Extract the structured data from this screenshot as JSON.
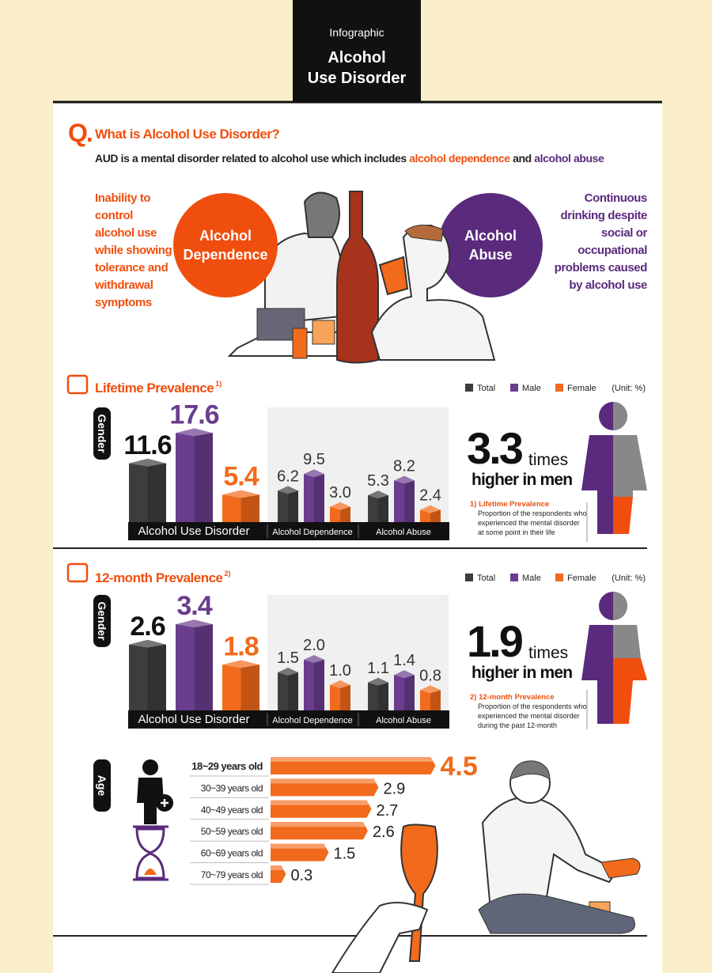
{
  "header": {
    "kicker": "Infographic",
    "title_lines": [
      "Alcohol",
      "Use Disorder"
    ]
  },
  "intro": {
    "q": "Q.",
    "question": "What is Alcohol Use Disorder?",
    "statement": [
      "AUD is a mental disorder related to alcohol use which includes ",
      "alcohol dependence",
      " and ",
      "alcohol abuse"
    ],
    "dependence": {
      "label": "Alcohol Dependence",
      "description": "Inability to control alcohol use while showing tolerance and withdrawal symptoms"
    },
    "abuse": {
      "label": "Alcohol Abuse",
      "description": "Continuous drinking despite social or occupational problems caused by alcohol use"
    }
  },
  "chart_data": [
    {
      "type": "bar",
      "title": "Lifetime Prevalence",
      "title_note": "1)",
      "axis_label": "Gender",
      "unit": "(Unit: %)",
      "categories": [
        "Alcohol Use Disorder",
        "Alcohol Dependence",
        "Alcohol Abuse"
      ],
      "series": [
        {
          "name": "Total",
          "color": "#3d3d3d",
          "values": [
            11.6,
            6.2,
            5.3
          ]
        },
        {
          "name": "Male",
          "color": "#6a3d8e",
          "values": [
            17.6,
            9.5,
            8.2
          ]
        },
        {
          "name": "Female",
          "color": "#f26a1b",
          "values": [
            5.4,
            3.0,
            2.4
          ],
          "value_labels": [
            "5.4",
            "3.0",
            "2.4"
          ]
        }
      ],
      "comparison": {
        "ratio": 3.3,
        "word": "times",
        "text": "higher in men"
      },
      "footnote": {
        "label": "1) Lifetime Prevalence",
        "text": "Proportion of the respondents who experienced the mental disorder at some point in their life"
      }
    },
    {
      "type": "bar",
      "title": "12-month Prevalence",
      "title_note": "2)",
      "axis_label": "Gender",
      "unit": "(Unit: %)",
      "categories": [
        "Alcohol Use Disorder",
        "Alcohol Dependence",
        "Alcohol Abuse"
      ],
      "series": [
        {
          "name": "Total",
          "color": "#3d3d3d",
          "values": [
            2.6,
            1.5,
            1.1
          ]
        },
        {
          "name": "Male",
          "color": "#6a3d8e",
          "values": [
            3.4,
            2.0,
            1.4
          ],
          "value_labels": [
            "3.4",
            "2.0",
            "1.4"
          ]
        },
        {
          "name": "Female",
          "color": "#f26a1b",
          "values": [
            1.8,
            1.0,
            0.8
          ],
          "value_labels": [
            "1.8",
            "1.0",
            "0.8"
          ]
        }
      ],
      "comparison": {
        "ratio": 1.9,
        "word": "times",
        "text": "higher in men"
      },
      "footnote": {
        "label": "2) 12-month Prevalence",
        "text": "Proportion of the respondents who experienced the mental disorder during the past 12-month"
      }
    },
    {
      "type": "hbar",
      "axis_label": "Age",
      "color": "#f26a1b",
      "categories": [
        "18~29 years old",
        "30~39 years old",
        "40~49 years old",
        "50~59 years old",
        "60~69 years old",
        "70~79 years old"
      ],
      "values": [
        4.5,
        2.9,
        2.7,
        2.6,
        1.5,
        0.3
      ]
    }
  ]
}
